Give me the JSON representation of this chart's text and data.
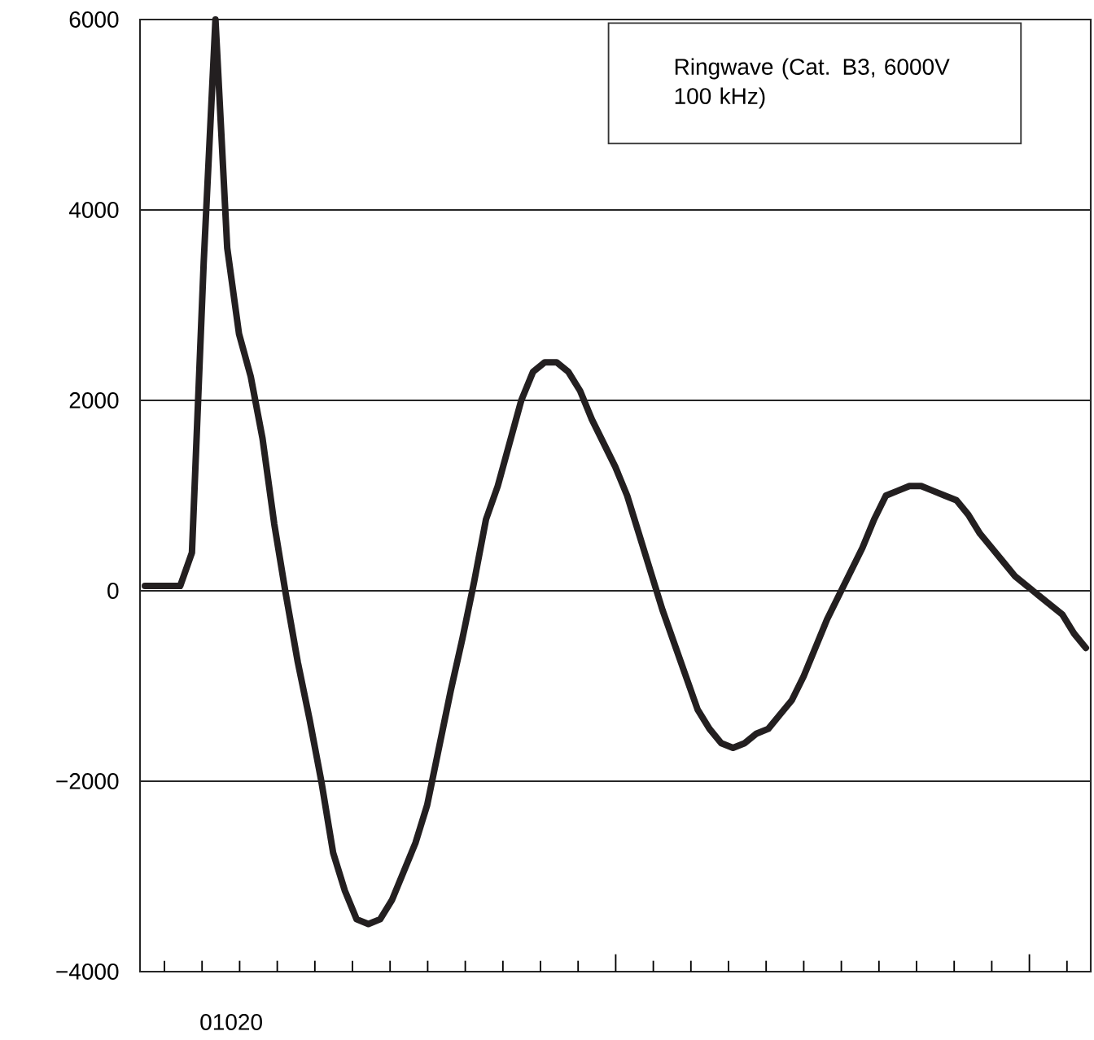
{
  "chart_data": {
    "type": "line",
    "categories": [
      null,
      null,
      null,
      null,
      null,
      null,
      null,
      null,
      null,
      null,
      null,
      null,
      null,
      null,
      null,
      null,
      null,
      null,
      null,
      null,
      null,
      null,
      null,
      null,
      null,
      null,
      null,
      null,
      null,
      null,
      null,
      null,
      null,
      null,
      null,
      null,
      null,
      null,
      null,
      null,
      null,
      null,
      null,
      null,
      null,
      null,
      null,
      null,
      null,
      null,
      null,
      null,
      null,
      null,
      null,
      null,
      null,
      null,
      null,
      null,
      null,
      null,
      null,
      null,
      null,
      null,
      null,
      null,
      null,
      null,
      null,
      null,
      null,
      null,
      null,
      null,
      null,
      null,
      null,
      null,
      null
    ],
    "series": [
      {
        "color": "#231f20",
        "values": [
          50,
          50,
          50,
          50,
          400,
          3450,
          6000,
          3600,
          2700,
          2250,
          1600,
          700,
          -50,
          -750,
          -1350,
          -2000,
          -2750,
          -3150,
          -3450,
          -3500,
          -3450,
          -3250,
          -2950,
          -2650,
          -2250,
          -1650,
          -1050,
          -500,
          100,
          750,
          1100,
          1550,
          2000,
          2300,
          2400,
          2400,
          2300,
          2100,
          1800,
          1550,
          1300,
          1000,
          600,
          200,
          -200,
          -550,
          -900,
          -1250,
          -1450,
          -1600,
          -1650,
          -1600,
          -1500,
          -1450,
          -1300,
          -1150,
          -900,
          -600,
          -300,
          -50,
          200,
          450,
          750,
          1000,
          1050,
          1100,
          1100,
          1050,
          1000,
          950,
          800,
          600,
          450,
          300,
          150,
          50,
          -50,
          -150,
          -250,
          -450,
          -600
        ]
      }
    ],
    "ylim": [
      -4000,
      6000
    ],
    "yticks": [
      {
        "value": -4000,
        "label": "−4000"
      },
      {
        "value": -2000,
        "label": "−2000"
      },
      {
        "value": 0,
        "label": "0"
      },
      {
        "value": 2000,
        "label": "2000"
      },
      {
        "value": 4000,
        "label": "4000"
      },
      {
        "value": 6000,
        "label": "6000"
      }
    ],
    "grid": "y",
    "legend": false,
    "marker": "none",
    "line_style": "solid",
    "annotations": [
      "Ringwave (Cat. B3, 6000V 100 kHz)",
      "01020"
    ]
  }
}
